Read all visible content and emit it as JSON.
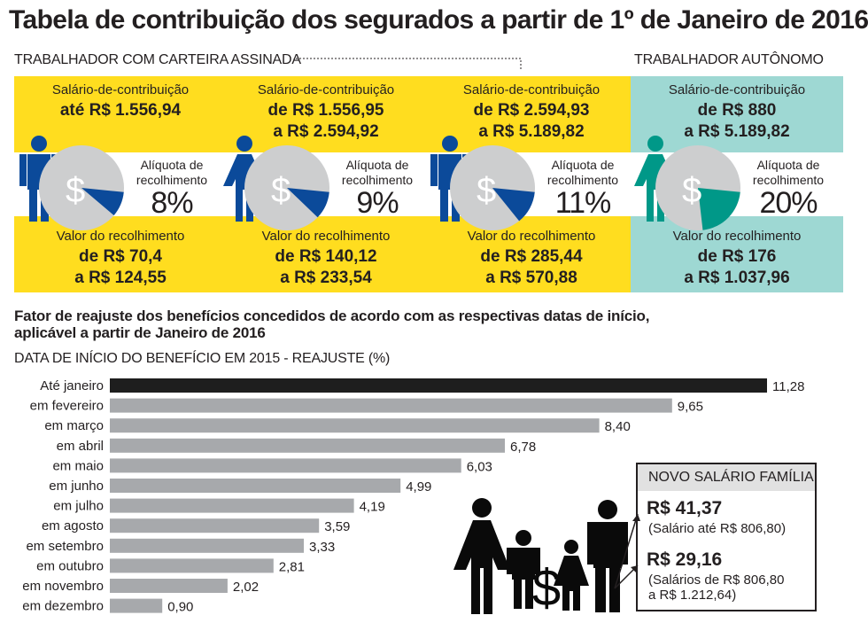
{
  "title": "Tabela de contribuição dos segurados  a partir de 1º de Janeiro de 2016",
  "groups": {
    "employed": "TRABALHADOR COM CARTEIRA ASSINADA",
    "self_employed": "TRABALHADOR AUTÔNOMO"
  },
  "colors": {
    "yellow": "#ffdd1f",
    "teal": "#9ed8d3",
    "blue": "#0b4a9a",
    "teal_dark": "#009888",
    "pie_grey": "#cdcecf",
    "bar_grey": "#a7a9ac",
    "bar_black": "#1e1e1e"
  },
  "cards": [
    {
      "salary_label": "Salário-de-contribuição",
      "salary_line1": "até R$ 1.556,94",
      "salary_line2": "",
      "rate_label_line1": "Alíquota de",
      "rate_label_line2": "recolhimento",
      "rate": "8%",
      "rate_value": 8,
      "value_label": "Valor do recolhimento",
      "value_line1": "de R$ 70,4",
      "value_line2": "a R$ 124,55",
      "pie_icon": "dollar-icon",
      "person_icon": "man-icon"
    },
    {
      "salary_label": "Salário-de-contribuição",
      "salary_line1": "de R$ 1.556,95",
      "salary_line2": "a R$ 2.594,92",
      "rate_label_line1": "Alíquota de",
      "rate_label_line2": "recolhimento",
      "rate": "9%",
      "rate_value": 9,
      "value_label": "Valor do recolhimento",
      "value_line1": "de R$ 140,12",
      "value_line2": "a R$ 233,54",
      "pie_icon": "dollar-icon",
      "person_icon": "woman-icon"
    },
    {
      "salary_label": "Salário-de-contribuição",
      "salary_line1": "de R$ 2.594,93",
      "salary_line2": "a R$ 5.189,82",
      "rate_label_line1": "Alíquota de",
      "rate_label_line2": "recolhimento",
      "rate": "11%",
      "rate_value": 11,
      "value_label": "Valor do recolhimento",
      "value_line1": "de R$ 285,44",
      "value_line2": "a R$ 570,88",
      "pie_icon": "dollar-icon",
      "person_icon": "man-icon"
    },
    {
      "salary_label": "Salário-de-contribuição",
      "salary_line1": "de R$ 880",
      "salary_line2": "a R$ 5.189,82",
      "rate_label_line1": "Alíquota de",
      "rate_label_line2": "recolhimento",
      "rate": "20%",
      "rate_value": 20,
      "value_label": "Valor do recolhimento",
      "value_line1": "de R$ 176",
      "value_line2": "a R$ 1.037,96",
      "pie_icon": "dollar-icon",
      "person_icon": "woman-icon"
    }
  ],
  "reajuste": {
    "title_line1": "Fator de reajuste dos benefícios concedidos de acordo com as respectivas datas de início,",
    "title_line2": "aplicável a partir de Janeiro de 2016"
  },
  "chart_data": {
    "type": "bar",
    "orientation": "horizontal",
    "title": "DATA DE INÍCIO DO BENEFÍCIO EM 2015  - REAJUSTE (%)",
    "categories": [
      "Até janeiro",
      "em fevereiro",
      "em março",
      "em abril",
      "em maio",
      "em junho",
      "em julho",
      "em agosto",
      "em setembro",
      "em outubro",
      "em novembro",
      "em dezembro"
    ],
    "values": [
      11.28,
      9.65,
      8.4,
      6.78,
      6.03,
      4.99,
      4.19,
      3.59,
      3.33,
      2.81,
      2.02,
      0.9
    ],
    "value_labels": [
      "11,28",
      "9,65",
      "8,40",
      "6,78",
      "6,03",
      "4,99",
      "4,19",
      "3,59",
      "3,33",
      "2,81",
      "2,02",
      "0,90"
    ],
    "xlim": [
      0,
      11.28
    ],
    "highlight_index": 0,
    "grid": false
  },
  "family": {
    "title": "NOVO SALÁRIO FAMÍLIA",
    "value1": "R$ 41,37",
    "note1": "(Salário até R$ 806,80)",
    "value2": "R$ 29,16",
    "note2_line1": "(Salários de R$ 806,80",
    "note2_line2": "a R$ 1.212,64)",
    "icon": "family-icon"
  }
}
